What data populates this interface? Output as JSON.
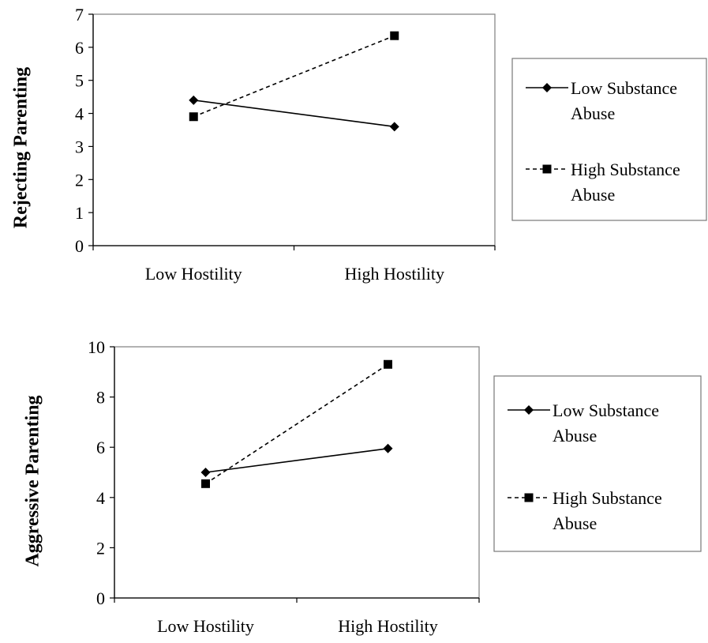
{
  "chart_data": [
    {
      "type": "line",
      "categories": [
        "Low Hostility",
        "High Hostility"
      ],
      "ylabel": "Rejecting Parenting",
      "ylim": [
        0,
        7
      ],
      "yticks": [
        0,
        1,
        2,
        3,
        4,
        5,
        6,
        7
      ],
      "grid": false,
      "legend_position": "right",
      "series": [
        {
          "name": "Low Substance Abuse",
          "name_lines": [
            "Low Substance",
            "Abuse"
          ],
          "values": [
            4.4,
            3.6
          ],
          "marker": "diamond",
          "dash": "solid"
        },
        {
          "name": "High Substance Abuse",
          "name_lines": [
            "High Substance",
            "Abuse"
          ],
          "values": [
            3.9,
            6.35
          ],
          "marker": "square",
          "dash": "dashed"
        }
      ]
    },
    {
      "type": "line",
      "categories": [
        "Low Hostility",
        "High Hostility"
      ],
      "ylabel": "Aggressive Parenting",
      "ylim": [
        0,
        10
      ],
      "yticks": [
        0,
        2,
        4,
        6,
        8,
        10
      ],
      "grid": false,
      "legend_position": "right",
      "series": [
        {
          "name": "Low Substance Abuse",
          "name_lines": [
            "Low Substance",
            "Abuse"
          ],
          "values": [
            5.0,
            5.95
          ],
          "marker": "diamond",
          "dash": "solid"
        },
        {
          "name": "High Substance Abuse",
          "name_lines": [
            "High Substance",
            "Abuse"
          ],
          "values": [
            4.55,
            9.3
          ],
          "marker": "square",
          "dash": "dashed"
        }
      ]
    }
  ]
}
